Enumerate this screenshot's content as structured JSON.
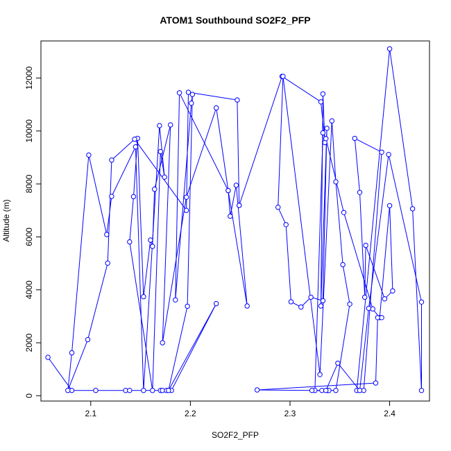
{
  "chart_data": {
    "type": "line",
    "title": "ATOM1 Southbound SO2F2_PFP",
    "xlabel": "SO2F2_PFP",
    "ylabel": "Altitude (m)",
    "xlim": [
      2.05,
      2.44
    ],
    "ylim": [
      -200,
      13400
    ],
    "x_ticks": [
      2.1,
      2.2,
      2.3,
      2.4
    ],
    "y_ticks": [
      0,
      2000,
      4000,
      6000,
      8000,
      10000,
      12000
    ],
    "grid": false,
    "legend": "none",
    "colors": {
      "series": "#0000ff",
      "axis": "#000000",
      "background": "#ffffff"
    },
    "series": [
      {
        "x": [
          2.057,
          2.081,
          2.105,
          2.135,
          2.139,
          2.17,
          2.172,
          2.176,
          2.181,
          2.226,
          2.178,
          2.197,
          2.202,
          2.201,
          2.185,
          2.189,
          2.238,
          2.257,
          2.246,
          2.24,
          2.238,
          2.226,
          2.196,
          2.172,
          2.18,
          2.164,
          2.162,
          2.16,
          2.153,
          2.147,
          2.143,
          2.139,
          2.162,
          2.17,
          2.174,
          2.169,
          2.153,
          2.145,
          2.121,
          2.116,
          2.098,
          2.081,
          2.077,
          2.097,
          2.117,
          2.121,
          2.144,
          2.196,
          2.198,
          2.247,
          2.249,
          2.249,
          2.292,
          2.331,
          2.335,
          2.333,
          2.331,
          2.337,
          2.333,
          2.321,
          2.311,
          2.301,
          2.296,
          2.288,
          2.293,
          2.33,
          2.342,
          2.346,
          2.353,
          2.36,
          2.346,
          2.338,
          2.339,
          2.332,
          2.325,
          2.333,
          2.336,
          2.354,
          2.383,
          2.39,
          2.4,
          2.403,
          2.395,
          2.376,
          2.375,
          2.37,
          2.365,
          2.392,
          2.374,
          2.367,
          2.4,
          2.423,
          2.432,
          2.432,
          2.399,
          2.379,
          2.37,
          2.348,
          2.336,
          2.322,
          2.267,
          2.386,
          2.388,
          2.392
        ]
      }
    ],
    "points": [
      [
        2.057,
        1450
      ],
      [
        2.081,
        200
      ],
      [
        2.105,
        200
      ],
      [
        2.135,
        200
      ],
      [
        2.139,
        200
      ],
      [
        2.17,
        200
      ],
      [
        2.172,
        200
      ],
      [
        2.176,
        200
      ],
      [
        2.181,
        200
      ],
      [
        2.226,
        3480
      ],
      [
        2.178,
        200
      ],
      [
        2.197,
        3380
      ],
      [
        2.202,
        11380
      ],
      [
        2.201,
        11050
      ],
      [
        2.185,
        3620
      ],
      [
        2.189,
        11440
      ],
      [
        2.238,
        7750
      ],
      [
        2.257,
        3390
      ],
      [
        2.246,
        7950
      ],
      [
        2.24,
        6780
      ],
      [
        2.238,
        7750
      ],
      [
        2.226,
        10870
      ],
      [
        2.196,
        7500
      ],
      [
        2.172,
        2000
      ],
      [
        2.18,
        10230
      ],
      [
        2.164,
        7800
      ],
      [
        2.162,
        5640
      ],
      [
        2.16,
        5880
      ],
      [
        2.153,
        3740
      ],
      [
        2.147,
        9720
      ],
      [
        2.143,
        7520
      ],
      [
        2.139,
        5810
      ],
      [
        2.162,
        200
      ],
      [
        2.17,
        9220
      ],
      [
        2.174,
        8260
      ],
      [
        2.169,
        10200
      ],
      [
        2.153,
        200
      ],
      [
        2.145,
        9400
      ],
      [
        2.121,
        7530
      ],
      [
        2.116,
        6090
      ],
      [
        2.098,
        9090
      ],
      [
        2.081,
        1620
      ],
      [
        2.077,
        200
      ],
      [
        2.097,
        2120
      ],
      [
        2.117,
        5010
      ],
      [
        2.121,
        8900
      ],
      [
        2.144,
        9690
      ],
      [
        2.196,
        7000
      ],
      [
        2.198,
        11460
      ],
      [
        2.247,
        11170
      ],
      [
        2.249,
        7190
      ],
      [
        2.249,
        7190
      ],
      [
        2.292,
        12060
      ],
      [
        2.331,
        11100
      ],
      [
        2.335,
        9560
      ],
      [
        2.333,
        11400
      ],
      [
        2.331,
        3390
      ],
      [
        2.337,
        10100
      ],
      [
        2.333,
        3590
      ],
      [
        2.321,
        3720
      ],
      [
        2.311,
        3350
      ],
      [
        2.301,
        3550
      ],
      [
        2.296,
        6460
      ],
      [
        2.288,
        7120
      ],
      [
        2.293,
        12060
      ],
      [
        2.33,
        800
      ],
      [
        2.342,
        10380
      ],
      [
        2.346,
        8080
      ],
      [
        2.353,
        4950
      ],
      [
        2.36,
        3460
      ],
      [
        2.346,
        200
      ],
      [
        2.338,
        200
      ],
      [
        2.339,
        200
      ],
      [
        2.332,
        200
      ],
      [
        2.325,
        200
      ],
      [
        2.333,
        9930
      ],
      [
        2.336,
        9710
      ],
      [
        2.354,
        6920
      ],
      [
        2.383,
        3280
      ],
      [
        2.39,
        2950
      ],
      [
        2.4,
        7180
      ],
      [
        2.403,
        3960
      ],
      [
        2.395,
        3660
      ],
      [
        2.376,
        5680
      ],
      [
        2.375,
        3720
      ],
      [
        2.37,
        7680
      ],
      [
        2.365,
        9720
      ],
      [
        2.392,
        9200
      ],
      [
        2.374,
        200
      ],
      [
        2.367,
        200
      ],
      [
        2.4,
        13100
      ],
      [
        2.423,
        7060
      ],
      [
        2.432,
        200
      ],
      [
        2.432,
        3540
      ],
      [
        2.399,
        9110
      ],
      [
        2.379,
        3300
      ],
      [
        2.37,
        200
      ],
      [
        2.348,
        1230
      ],
      [
        2.336,
        200
      ],
      [
        2.322,
        200
      ],
      [
        2.267,
        220
      ],
      [
        2.386,
        480
      ],
      [
        2.388,
        2950
      ],
      [
        2.392,
        2950
      ]
    ]
  }
}
